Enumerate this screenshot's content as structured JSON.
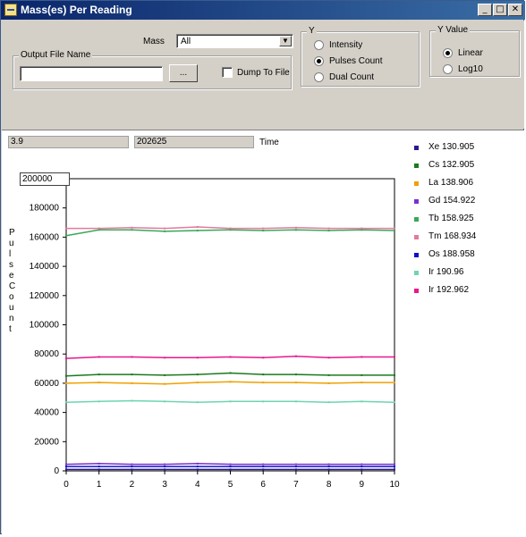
{
  "window": {
    "title": "Mass(es) Per Reading",
    "minimize_glyph": "_",
    "maximize_glyph": "□",
    "close_glyph": "✕"
  },
  "controls": {
    "mass_label": "Mass",
    "mass_value": "All",
    "output_group_label": "Output File Name",
    "output_file_value": "",
    "browse_label": "...",
    "dump_label": "Dump To File",
    "dump_checked": false
  },
  "y_group": {
    "label": "Y",
    "options": [
      "Intensity",
      "Pulses Count",
      "Dual Count"
    ],
    "selected": "Pulses Count"
  },
  "y_value_group": {
    "label": "Y Value",
    "options": [
      "Linear",
      "Log10"
    ],
    "selected": "Linear"
  },
  "readouts": {
    "value1": "3.9",
    "value2": "202625",
    "time_label": "Time",
    "y_max": "200000"
  },
  "chart_data": {
    "type": "line",
    "ylabel": "PulseCount",
    "ylim": [
      0,
      200000
    ],
    "xlim": [
      0,
      10
    ],
    "y_ticks": [
      0,
      20000,
      40000,
      60000,
      80000,
      100000,
      120000,
      140000,
      160000,
      180000
    ],
    "x": [
      0,
      1,
      2,
      3,
      4,
      5,
      6,
      7,
      8,
      9,
      10
    ],
    "series": [
      {
        "name": "Xe 130.905",
        "color": "#2a1a8c",
        "values": [
          1000,
          1000,
          1000,
          1000,
          1000,
          1000,
          1000,
          1000,
          1000,
          1000,
          1000
        ]
      },
      {
        "name": "Cs 132.905",
        "color": "#1b7a1b",
        "values": [
          65000,
          66000,
          66000,
          65500,
          66000,
          67000,
          66000,
          66000,
          65500,
          65500,
          65500
        ]
      },
      {
        "name": "La 138.906",
        "color": "#f0a000",
        "values": [
          60000,
          60500,
          60000,
          59500,
          60500,
          61000,
          60500,
          60500,
          60000,
          60500,
          60500
        ]
      },
      {
        "name": "Gd 154.922",
        "color": "#7b2fd0",
        "values": [
          4500,
          5000,
          4500,
          4500,
          5000,
          4500,
          4500,
          4500,
          4500,
          4500,
          4500
        ]
      },
      {
        "name": "Tb 158.925",
        "color": "#3aa85a",
        "values": [
          161000,
          165000,
          165000,
          164000,
          164500,
          165000,
          164500,
          165000,
          164500,
          165000,
          164500
        ]
      },
      {
        "name": "Tm 168.934",
        "color": "#e47a9a",
        "values": [
          166000,
          166000,
          166500,
          166000,
          167000,
          166000,
          166000,
          166500,
          166000,
          166000,
          166000
        ]
      },
      {
        "name": "Os 188.958",
        "color": "#1010c8",
        "values": [
          3000,
          3000,
          3000,
          3000,
          3000,
          3000,
          3000,
          3000,
          3000,
          3000,
          3000
        ]
      },
      {
        "name": "Ir 190.96",
        "color": "#6fd4b0",
        "values": [
          47000,
          47500,
          48000,
          47500,
          47000,
          47500,
          47500,
          47500,
          47000,
          47500,
          47000
        ]
      },
      {
        "name": "Ir 192.962",
        "color": "#e8188c",
        "values": [
          77000,
          78000,
          78000,
          77500,
          77500,
          78000,
          77500,
          78500,
          77500,
          78000,
          78000
        ]
      }
    ]
  }
}
